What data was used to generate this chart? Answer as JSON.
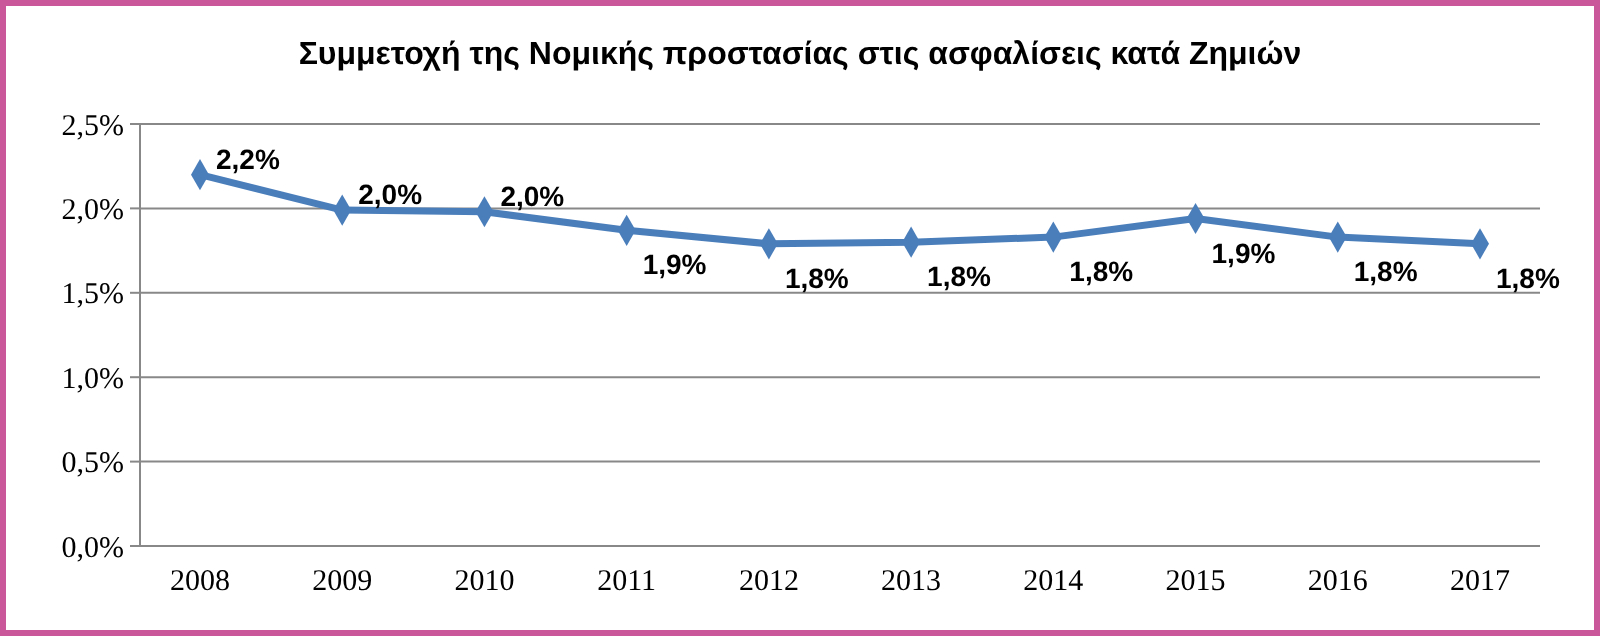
{
  "chart_data": {
    "type": "line",
    "title": "Συμμετοχή της Νομικής προστασίας στις ασφαλίσεις κατά Ζημιών",
    "categories": [
      "2008",
      "2009",
      "2010",
      "2011",
      "2012",
      "2013",
      "2014",
      "2015",
      "2016",
      "2017"
    ],
    "series": [
      {
        "color": "#4a7ebb",
        "values": [
          2.2,
          1.99,
          1.98,
          1.87,
          1.79,
          1.8,
          1.83,
          1.94,
          1.83,
          1.79
        ],
        "value_labels": [
          "2,2%",
          "2,0%",
          "2,0%",
          "1,9%",
          "1,8%",
          "1,8%",
          "1,8%",
          "1,9%",
          "1,8%",
          "1,8%"
        ]
      }
    ],
    "ylim": [
      0,
      2.5
    ],
    "yticks": [
      {
        "value": 0,
        "label": "0,0%"
      },
      {
        "value": 0.5,
        "label": "0,5%"
      },
      {
        "value": 1,
        "label": "1,0%"
      },
      {
        "value": 1.5,
        "label": "1,5%"
      },
      {
        "value": 2,
        "label": "2,0%"
      },
      {
        "value": 2.5,
        "label": "2,5%"
      }
    ],
    "grid": "y",
    "marker": "diamond",
    "line_style": "solid"
  }
}
